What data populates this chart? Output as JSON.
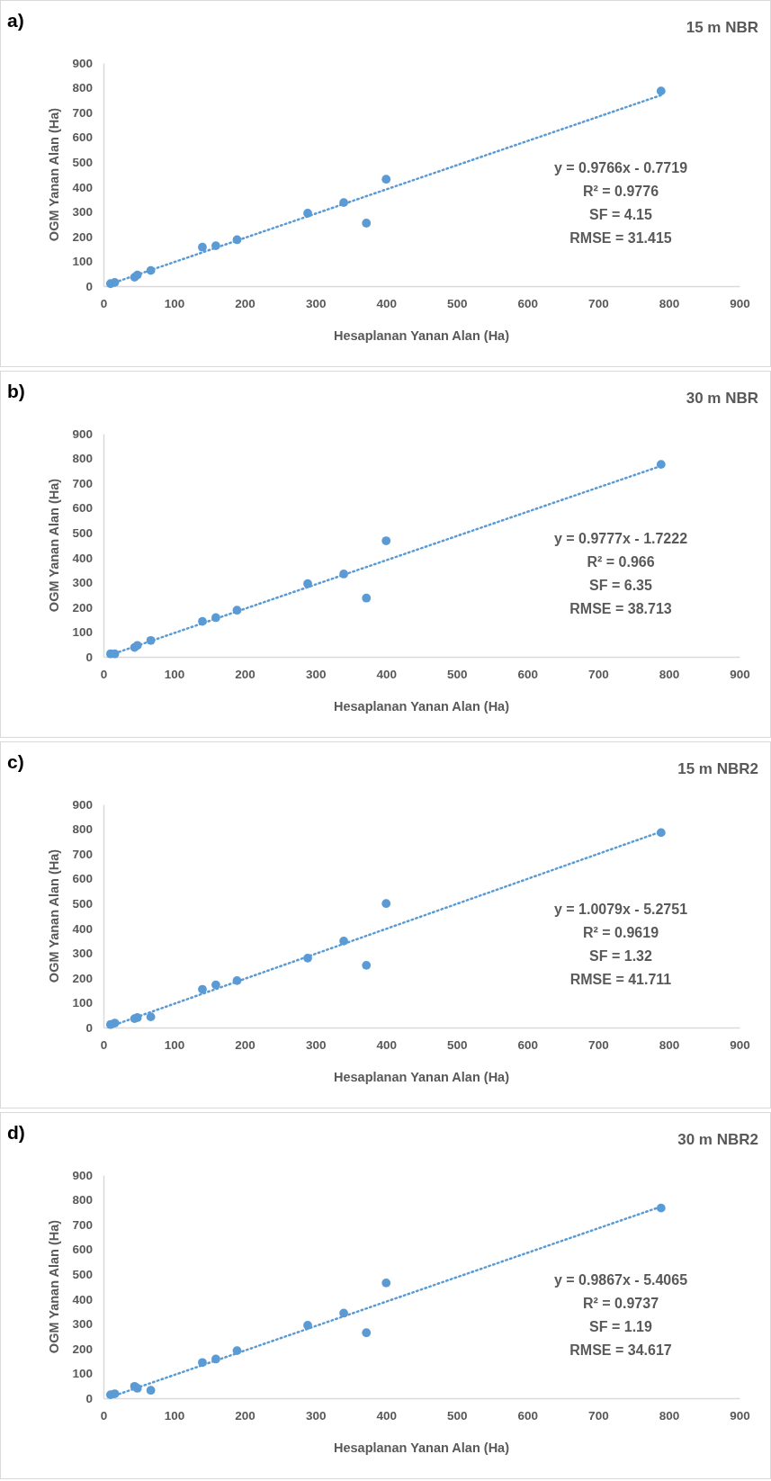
{
  "chart_data": [
    {
      "type": "scatter",
      "title": "a)",
      "subtitle": "15 m NBR",
      "xlabel": "Hesaplanan Yanan Alan (Ha)",
      "ylabel": "OGM Yanan Alan (Ha)",
      "xlim": [
        0,
        900
      ],
      "xticks": [
        0,
        100,
        200,
        300,
        400,
        500,
        600,
        700,
        800,
        900
      ],
      "ylim": [
        0,
        900
      ],
      "yticks": [
        0,
        100,
        200,
        300,
        400,
        500,
        600,
        700,
        800,
        900
      ],
      "grid": false,
      "series": [
        {
          "type": "scatter",
          "marker": "circle",
          "color": "#5b9bd5",
          "x": [
            10,
            16,
            44,
            48,
            67,
            140,
            159,
            189,
            289,
            340,
            372,
            400,
            789
          ],
          "values": [
            10,
            15,
            36,
            45,
            63,
            157,
            163,
            187,
            294,
            337,
            254,
            431,
            787
          ]
        },
        {
          "type": "line",
          "color": "#5b9bd5",
          "line_style": "dotted",
          "x": [
            10,
            789
          ],
          "values": [
            9,
            770
          ]
        }
      ],
      "annotations": [
        "y = 0.9766x - 0.7719",
        "R² = 0.9776",
        "SF = 4.15",
        "RMSE = 31.415"
      ]
    },
    {
      "type": "scatter",
      "title": "b)",
      "subtitle": "30 m NBR",
      "xlabel": "Hesaplanan Yanan Alan (Ha)",
      "ylabel": "OGM Yanan Alan (Ha)",
      "xlim": [
        0,
        900
      ],
      "xticks": [
        0,
        100,
        200,
        300,
        400,
        500,
        600,
        700,
        800,
        900
      ],
      "ylim": [
        0,
        900
      ],
      "yticks": [
        0,
        100,
        200,
        300,
        400,
        500,
        600,
        700,
        800,
        900
      ],
      "grid": false,
      "series": [
        {
          "type": "scatter",
          "marker": "circle",
          "color": "#5b9bd5",
          "x": [
            10,
            16,
            44,
            48,
            67,
            140,
            159,
            189,
            289,
            340,
            372,
            400,
            789
          ],
          "values": [
            12,
            12,
            38,
            46,
            66,
            143,
            158,
            188,
            295,
            334,
            237,
            468,
            776
          ]
        },
        {
          "type": "line",
          "color": "#5b9bd5",
          "line_style": "dotted",
          "x": [
            10,
            789
          ],
          "values": [
            8,
            770
          ]
        }
      ],
      "annotations": [
        "y = 0.9777x - 1.7222",
        "R² = 0.966",
        "SF = 6.35",
        "RMSE = 38.713"
      ]
    },
    {
      "type": "scatter",
      "title": "c)",
      "subtitle": "15 m NBR2",
      "xlabel": "Hesaplanan Yanan Alan (Ha)",
      "ylabel": "OGM Yanan Alan (Ha)",
      "xlim": [
        0,
        900
      ],
      "xticks": [
        0,
        100,
        200,
        300,
        400,
        500,
        600,
        700,
        800,
        900
      ],
      "ylim": [
        0,
        900
      ],
      "yticks": [
        0,
        100,
        200,
        300,
        400,
        500,
        600,
        700,
        800,
        900
      ],
      "grid": false,
      "series": [
        {
          "type": "scatter",
          "marker": "circle",
          "color": "#5b9bd5",
          "x": [
            10,
            16,
            44,
            48,
            67,
            140,
            159,
            189,
            289,
            340,
            372,
            400,
            789
          ],
          "values": [
            12,
            18,
            36,
            40,
            43,
            154,
            172,
            189,
            280,
            349,
            251,
            500,
            786
          ]
        },
        {
          "type": "line",
          "color": "#5b9bd5",
          "line_style": "dotted",
          "x": [
            10,
            789
          ],
          "values": [
            5,
            790
          ]
        }
      ],
      "annotations": [
        "y = 1.0079x - 5.2751",
        "R² = 0.9619",
        "SF = 1.32",
        "RMSE = 41.711"
      ]
    },
    {
      "type": "scatter",
      "title": "d)",
      "subtitle": "30 m NBR2",
      "xlabel": "Hesaplanan Yanan Alan (Ha)",
      "ylabel": "OGM Yanan Alan (Ha)",
      "xlim": [
        0,
        900
      ],
      "xticks": [
        0,
        100,
        200,
        300,
        400,
        500,
        600,
        700,
        800,
        900
      ],
      "ylim": [
        0,
        900
      ],
      "yticks": [
        0,
        100,
        200,
        300,
        400,
        500,
        600,
        700,
        800,
        900
      ],
      "grid": false,
      "series": [
        {
          "type": "scatter",
          "marker": "circle",
          "color": "#5b9bd5",
          "x": [
            10,
            16,
            44,
            48,
            67,
            140,
            159,
            189,
            289,
            340,
            372,
            400,
            789
          ],
          "values": [
            14,
            18,
            48,
            40,
            32,
            144,
            158,
            192,
            294,
            343,
            264,
            465,
            767
          ]
        },
        {
          "type": "line",
          "color": "#5b9bd5",
          "line_style": "dotted",
          "x": [
            10,
            789
          ],
          "values": [
            5,
            773
          ]
        }
      ],
      "annotations": [
        "y = 0.9867x - 5.4065",
        "R² = 0.9737",
        "SF = 1.19",
        "RMSE = 34.617"
      ]
    }
  ]
}
